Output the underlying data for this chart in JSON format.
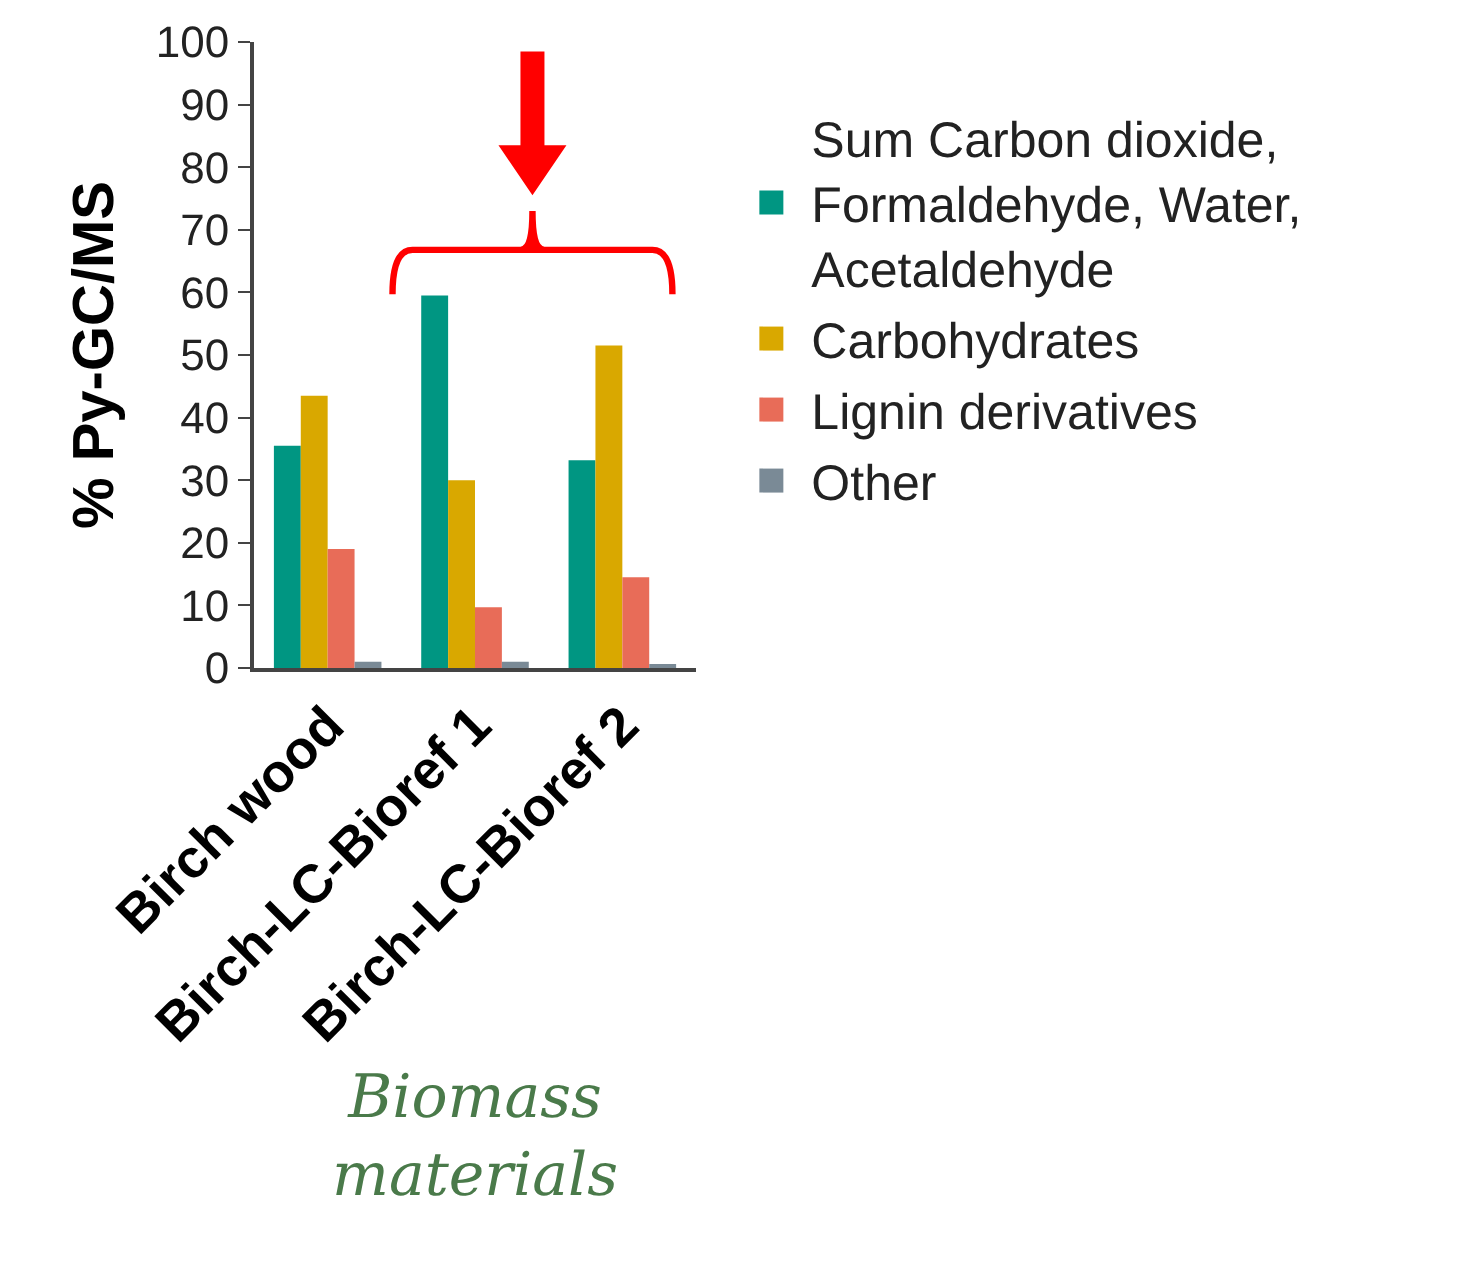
{
  "chart_data": {
    "type": "bar",
    "ylabel": "% Py-GC/MS",
    "xlabel": "Biomass materials",
    "categories": [
      "Birch wood",
      "Birch-LC-Bioref 1",
      "Birch-LC-Bioref 2"
    ],
    "series": [
      {
        "name": "Sum Carbon dioxide, Formaldehyde, Water, Acetaldehyde",
        "color": "#009682",
        "values": [
          35.5,
          59.5,
          33.2
        ]
      },
      {
        "name": "Carbohydrates",
        "color": "#d9a800",
        "values": [
          43.5,
          30,
          51.5
        ]
      },
      {
        "name": "Lignin derivatives",
        "color": "#e86c58",
        "values": [
          19,
          9.7,
          14.5
        ]
      },
      {
        "name": "Other",
        "color": "#7a8a96",
        "values": [
          1,
          1,
          0.5
        ]
      }
    ],
    "ylim": [
      0,
      100
    ],
    "yticks": [
      0,
      10,
      20,
      30,
      40,
      50,
      60,
      70,
      80,
      90,
      100
    ],
    "grid": false,
    "legend": "right"
  }
}
